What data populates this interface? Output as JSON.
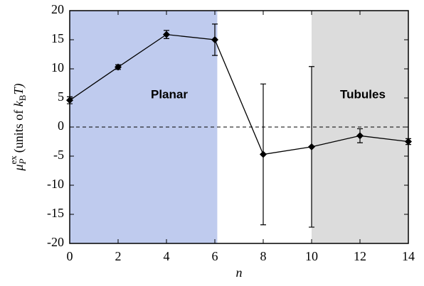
{
  "chart_data": {
    "type": "line",
    "xlabel": "n",
    "ylabel": {
      "symbol": "μ",
      "sub": "P",
      "sup": "ex",
      "text": "(units of ",
      "k": "k",
      "k_sub": "B",
      "end": "T)"
    },
    "x": [
      0,
      2,
      4,
      6,
      8,
      10,
      12,
      14
    ],
    "series": [
      {
        "color": "#000000",
        "values": [
          4.6,
          10.3,
          15.9,
          15.0,
          -4.7,
          -3.4,
          -1.5,
          -2.5
        ],
        "errors": [
          0.6,
          0.4,
          0.7,
          2.7,
          12.1,
          13.8,
          1.2,
          0.5
        ]
      }
    ],
    "regions": [
      {
        "label": "Planar",
        "xlim": [
          0,
          6.1
        ],
        "color": "#bfcbee"
      },
      {
        "label": "Tubules",
        "xlim": [
          10,
          14
        ],
        "color": "#dcdcdc"
      }
    ],
    "hline": 0,
    "xlim": [
      0,
      14
    ],
    "xticks": [
      0,
      2,
      4,
      6,
      8,
      10,
      12,
      14
    ],
    "ylim": [
      -20,
      20
    ],
    "yticks": [
      -20,
      -15,
      -10,
      -5,
      0,
      5,
      10,
      15,
      20
    ]
  }
}
